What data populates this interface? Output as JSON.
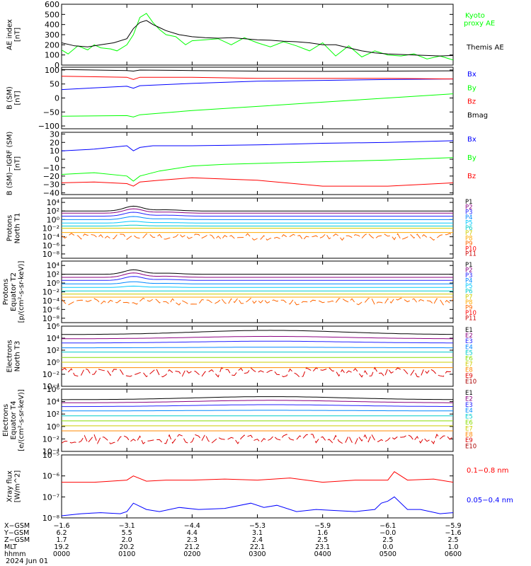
{
  "page": {
    "footer_date": "2024 Jun 01"
  },
  "colors": {
    "black": "#000000",
    "blue": "#0000ff",
    "green": "#00ff00",
    "red": "#ff0000"
  },
  "chart_data": [
    {
      "type": "line",
      "ylabel": [
        "AE index",
        "[nT]"
      ],
      "ylim": [
        0,
        600
      ],
      "yticks": [
        {
          "v": 0,
          "t": "0"
        },
        {
          "v": 100,
          "t": "100"
        },
        {
          "v": 200,
          "t": "200"
        },
        {
          "v": 300,
          "t": "300"
        },
        {
          "v": 400,
          "t": "400"
        },
        {
          "v": 500,
          "t": "500"
        },
        {
          "v": 600,
          "t": "600"
        }
      ],
      "legend": [
        {
          "text": "Kyoto",
          "color": "#00ff00"
        },
        {
          "text": "proxy AE",
          "color": "#00ff00"
        },
        {
          "text": "Themis AE",
          "color": "#000000"
        }
      ],
      "series": [
        {
          "name": "Kyoto proxy AE",
          "color": "#00ff00",
          "x": [
            0,
            0.1,
            0.25,
            0.4,
            0.5,
            0.6,
            0.75,
            0.85,
            1.0,
            1.1,
            1.2,
            1.3,
            1.4,
            1.5,
            1.6,
            1.75,
            1.9,
            2.0,
            2.2,
            2.4,
            2.6,
            2.8,
            3.0,
            3.2,
            3.4,
            3.6,
            3.8,
            4.0,
            4.2,
            4.4,
            4.6,
            4.8,
            5.0,
            5.2,
            5.4,
            5.6,
            5.8,
            6.0
          ],
          "y": [
            150,
            110,
            190,
            150,
            200,
            170,
            160,
            140,
            200,
            300,
            470,
            510,
            420,
            350,
            300,
            280,
            200,
            240,
            250,
            260,
            200,
            270,
            220,
            180,
            230,
            190,
            140,
            220,
            90,
            190,
            80,
            140,
            100,
            90,
            110,
            60,
            90,
            50
          ]
        },
        {
          "name": "Themis AE",
          "color": "#000000",
          "x": [
            0,
            0.2,
            0.4,
            0.6,
            0.8,
            1.0,
            1.1,
            1.2,
            1.3,
            1.4,
            1.5,
            1.6,
            1.8,
            2.0,
            2.2,
            2.4,
            2.6,
            2.8,
            3.0,
            3.2,
            3.4,
            3.6,
            3.8,
            4.0,
            4.2,
            4.4,
            4.6,
            4.8,
            5.0,
            5.2,
            5.4,
            5.6,
            5.8,
            6.0
          ],
          "y": [
            220,
            190,
            180,
            200,
            220,
            260,
            360,
            420,
            440,
            400,
            370,
            340,
            300,
            280,
            270,
            265,
            270,
            260,
            250,
            245,
            235,
            230,
            220,
            200,
            200,
            170,
            140,
            120,
            110,
            105,
            100,
            95,
            90,
            95
          ]
        }
      ]
    },
    {
      "type": "line",
      "ylabel": [
        "B (SM)",
        "[nT]"
      ],
      "ylim": [
        -110,
        110
      ],
      "yticks": [
        {
          "v": -100,
          "t": "−100"
        },
        {
          "v": -50,
          "t": "−50"
        },
        {
          "v": 0,
          "t": "0"
        },
        {
          "v": 50,
          "t": "50"
        },
        {
          "v": 100,
          "t": "100"
        }
      ],
      "legend": [
        {
          "text": "Bx",
          "color": "#0000ff"
        },
        {
          "text": "By",
          "color": "#00ff00"
        },
        {
          "text": "Bz",
          "color": "#ff0000"
        },
        {
          "text": "Bmag",
          "color": "#000000"
        }
      ],
      "series": [
        {
          "name": "Bx",
          "color": "#0000ff",
          "x": [
            0,
            1,
            1.1,
            1.2,
            2,
            3,
            4,
            5,
            6
          ],
          "y": [
            30,
            42,
            35,
            44,
            52,
            60,
            63,
            66,
            68
          ]
        },
        {
          "name": "By",
          "color": "#00ff00",
          "x": [
            0,
            1,
            1.1,
            1.2,
            2,
            3,
            4,
            5,
            6
          ],
          "y": [
            -65,
            -63,
            -68,
            -60,
            -45,
            -30,
            -15,
            0,
            15
          ]
        },
        {
          "name": "Bz",
          "color": "#ff0000",
          "x": [
            0,
            1,
            1.1,
            1.2,
            2,
            3,
            4,
            5,
            6
          ],
          "y": [
            78,
            74,
            66,
            74,
            74,
            70,
            70,
            70,
            68
          ]
        },
        {
          "name": "Bmag",
          "color": "#000000",
          "x": [
            0,
            1,
            1.1,
            1.2,
            2,
            3,
            4,
            5,
            6
          ],
          "y": [
            102,
            98,
            96,
            100,
            98,
            96,
            95,
            96,
            97
          ]
        }
      ]
    },
    {
      "type": "line",
      "ylabel": [
        "B (SM)−IGRF (SM)",
        "[nT]"
      ],
      "ylim": [
        -42,
        32
      ],
      "yticks": [
        {
          "v": -40,
          "t": "−40"
        },
        {
          "v": -30,
          "t": "−30"
        },
        {
          "v": -20,
          "t": "−20"
        },
        {
          "v": -10,
          "t": "−10"
        },
        {
          "v": 0,
          "t": "0"
        },
        {
          "v": 10,
          "t": "10"
        },
        {
          "v": 20,
          "t": "20"
        },
        {
          "v": 30,
          "t": "30"
        }
      ],
      "legend": [
        {
          "text": "Bx",
          "color": "#0000ff"
        },
        {
          "text": "By",
          "color": "#00ff00"
        },
        {
          "text": "Bz",
          "color": "#ff0000"
        }
      ],
      "series": [
        {
          "name": "Bx",
          "color": "#0000ff",
          "x": [
            0,
            0.5,
            1.0,
            1.1,
            1.2,
            1.4,
            2,
            3,
            4,
            5,
            6
          ],
          "y": [
            10,
            12,
            16,
            10,
            14,
            16,
            16,
            17,
            19,
            20,
            22
          ]
        },
        {
          "name": "By",
          "color": "#00ff00",
          "x": [
            0,
            0.5,
            1.0,
            1.1,
            1.2,
            1.5,
            2,
            2.5,
            3,
            4,
            5,
            6
          ],
          "y": [
            -18,
            -16,
            -20,
            -26,
            -20,
            -14,
            -8,
            -6,
            -5,
            -3,
            -1,
            2
          ]
        },
        {
          "name": "Bz",
          "color": "#ff0000",
          "x": [
            0,
            0.5,
            1.0,
            1.1,
            1.2,
            1.5,
            2,
            3,
            4,
            5,
            6
          ],
          "y": [
            -28,
            -27,
            -29,
            -32,
            -27,
            -25,
            -22,
            -25,
            -32,
            -32,
            -28
          ]
        }
      ]
    },
    {
      "type": "line",
      "log": true,
      "ylabel": [
        "Protons",
        "North T1"
      ],
      "ylim": [
        -9,
        5
      ],
      "yticks": [
        {
          "v": 4,
          "t": "10⁴"
        },
        {
          "v": 2,
          "t": "10²"
        },
        {
          "v": 0,
          "t": "10⁰"
        },
        {
          "v": -2,
          "t": "10⁻²"
        },
        {
          "v": -4,
          "t": "10⁻⁴"
        },
        {
          "v": -6,
          "t": "10⁻⁶"
        },
        {
          "v": -8,
          "t": "10⁻⁸"
        }
      ],
      "series": [
        {
          "name": "P1",
          "color": "#000000",
          "base": 2.0,
          "peak": 1.1
        },
        {
          "name": "P2",
          "color": "#8b0080",
          "base": 1.5,
          "peak": 1.0
        },
        {
          "name": "P3",
          "color": "#2222ff",
          "base": 0.8,
          "peak": 0.9
        },
        {
          "name": "P4",
          "color": "#0088ff",
          "base": 0.0,
          "peak": 0.7
        },
        {
          "name": "P5",
          "color": "#00c8ff",
          "base": -0.8,
          "peak": 0.4
        },
        {
          "name": "P6",
          "color": "#00cccc",
          "base": -1.5,
          "peak": 0.2
        },
        {
          "name": "P7",
          "color": "#cccc00",
          "base": -2.0,
          "peak": 0.0
        },
        {
          "name": "P8",
          "color": "#ffaa00",
          "base": -3.0,
          "peak": 0.0
        },
        {
          "name": "P9",
          "color": "#ff6600",
          "base": -4.0,
          "peak": 0.0,
          "noisy": true
        },
        {
          "name": "P10",
          "color": "#ff0000",
          "base": -99,
          "peak": 0
        },
        {
          "name": "P11",
          "color": "#cc0000",
          "base": -99,
          "peak": 0
        }
      ]
    },
    {
      "type": "line",
      "log": true,
      "ylabel": [
        "Protons",
        "Equator T2",
        "[p/(cm²-s-sr-keV)]"
      ],
      "ylim": [
        -9,
        5
      ],
      "yticks": [
        {
          "v": 4,
          "t": "10⁴"
        },
        {
          "v": 2,
          "t": "10²"
        },
        {
          "v": 0,
          "t": "10⁰"
        },
        {
          "v": -2,
          "t": "10⁻²"
        },
        {
          "v": -4,
          "t": "10⁻⁴"
        },
        {
          "v": -6,
          "t": "10⁻⁶"
        },
        {
          "v": -8,
          "t": "10⁻⁸"
        }
      ],
      "series": [
        {
          "name": "P1",
          "color": "#000000",
          "base": 2.0,
          "peak": 1.0
        },
        {
          "name": "P2",
          "color": "#8b0080",
          "base": 1.3,
          "peak": 1.0
        },
        {
          "name": "P3",
          "color": "#2222ff",
          "base": 0.6,
          "peak": 0.9
        },
        {
          "name": "P4",
          "color": "#0088ff",
          "base": -0.2,
          "peak": 0.5
        },
        {
          "name": "P5",
          "color": "#00c8ff",
          "base": -1.0,
          "peak": 0.3
        },
        {
          "name": "P6",
          "color": "#00cccc",
          "base": -1.8,
          "peak": 0.0
        },
        {
          "name": "P7",
          "color": "#cccc00",
          "base": -2.5,
          "peak": 0.0
        },
        {
          "name": "P8",
          "color": "#ffaa00",
          "base": -3.2,
          "peak": 0.0
        },
        {
          "name": "P9",
          "color": "#ff6600",
          "base": -4.2,
          "peak": 0.0,
          "noisy": true
        },
        {
          "name": "P10",
          "color": "#ff0000",
          "base": -99,
          "peak": 0
        },
        {
          "name": "P11",
          "color": "#cc0000",
          "base": -99,
          "peak": 0
        }
      ]
    },
    {
      "type": "line",
      "log": true,
      "ylabel": [
        "Electrons",
        "North T3"
      ],
      "ylim": [
        -4,
        6
      ],
      "yticks": [
        {
          "v": 6,
          "t": "10⁶"
        },
        {
          "v": 4,
          "t": "10⁴"
        },
        {
          "v": 2,
          "t": "10²"
        },
        {
          "v": 0,
          "t": "10⁰"
        },
        {
          "v": -2,
          "t": "10⁻²"
        },
        {
          "v": -4,
          "t": "10⁻⁴"
        }
      ],
      "series": [
        {
          "name": "E1",
          "color": "#000000",
          "base": 4.6,
          "hump": 0.7
        },
        {
          "name": "E2",
          "color": "#8b0080",
          "base": 3.9,
          "hump": 0.4
        },
        {
          "name": "E3",
          "color": "#2222ff",
          "base": 3.2,
          "hump": 0.3
        },
        {
          "name": "E4",
          "color": "#0088ff",
          "base": 2.4,
          "hump": 0.1
        },
        {
          "name": "E5",
          "color": "#00cccc",
          "base": 1.7,
          "hump": 0.0
        },
        {
          "name": "E6",
          "color": "#88dd00",
          "base": 0.8,
          "hump": 0.0
        },
        {
          "name": "E7",
          "color": "#cccc00",
          "base": 0.0,
          "hump": 0.0
        },
        {
          "name": "E8",
          "color": "#ff8800",
          "base": -0.9,
          "hump": 0.0
        },
        {
          "name": "E9",
          "color": "#dd0000",
          "base": -1.7,
          "hump": 0.0,
          "noisy": true
        },
        {
          "name": "E10",
          "color": "#aa0000",
          "base": -99,
          "hump": 0
        }
      ]
    },
    {
      "type": "line",
      "log": true,
      "ylabel": [
        "Electrons",
        "Equator T4",
        "[e/(cm²-s-sr-keV)]"
      ],
      "ylim": [
        -4,
        6
      ],
      "yticks": [
        {
          "v": 6,
          "t": "10⁶"
        },
        {
          "v": 4,
          "t": "10⁴"
        },
        {
          "v": 2,
          "t": "10²"
        },
        {
          "v": 0,
          "t": "10⁰"
        },
        {
          "v": -2,
          "t": "10⁻²"
        },
        {
          "v": -4,
          "t": "10⁻⁴"
        }
      ],
      "series": [
        {
          "name": "E1",
          "color": "#000000",
          "base": 4.3,
          "hump": 0.5
        },
        {
          "name": "E2",
          "color": "#8b0080",
          "base": 3.8,
          "hump": 0.4
        },
        {
          "name": "E3",
          "color": "#2222ff",
          "base": 3.2,
          "hump": 0.3
        },
        {
          "name": "E4",
          "color": "#0088ff",
          "base": 2.5,
          "hump": 0.1
        },
        {
          "name": "E5",
          "color": "#00cccc",
          "base": 1.7,
          "hump": 0.0
        },
        {
          "name": "E6",
          "color": "#88dd00",
          "base": 0.9,
          "hump": 0.0
        },
        {
          "name": "E7",
          "color": "#cccc00",
          "base": 0.1,
          "hump": 0.0
        },
        {
          "name": "E8",
          "color": "#ff8800",
          "base": -0.7,
          "hump": 0.0
        },
        {
          "name": "E9",
          "color": "#dd0000",
          "base": -2.0,
          "hump": 0.0,
          "noisy": true
        },
        {
          "name": "E10",
          "color": "#aa0000",
          "base": -99,
          "hump": 0
        }
      ]
    },
    {
      "type": "line",
      "log": true,
      "ylabel": [
        "Xray flux",
        "[W/m^2]"
      ],
      "ylim": [
        -8,
        -5
      ],
      "yticks": [
        {
          "v": -5,
          "t": "10⁻⁵"
        },
        {
          "v": -6,
          "t": "10⁻⁶"
        },
        {
          "v": -7,
          "t": "10⁻⁷"
        },
        {
          "v": -8,
          "t": "10⁻⁸"
        }
      ],
      "legend": [
        {
          "text": "0.1−0.8 nm",
          "color": "#ff0000"
        },
        {
          "text": "0.05−0.4 nm",
          "color": "#0000ff"
        }
      ],
      "series": [
        {
          "name": "0.1−0.8 nm",
          "color": "#ff0000",
          "x": [
            0,
            0.5,
            1.0,
            1.1,
            1.3,
            1.6,
            2,
            2.5,
            3,
            3.5,
            4,
            4.5,
            5.0,
            5.1,
            5.3,
            5.7,
            6
          ],
          "y": [
            -6.3,
            -6.3,
            -6.2,
            -6.0,
            -6.25,
            -6.2,
            -6.2,
            -6.15,
            -6.2,
            -6.1,
            -6.3,
            -6.2,
            -6.2,
            -5.8,
            -6.2,
            -6.15,
            -6.3
          ]
        },
        {
          "name": "0.05−0.4 nm",
          "color": "#0000ff",
          "x": [
            0,
            0.3,
            0.6,
            0.9,
            1.0,
            1.1,
            1.3,
            1.5,
            1.8,
            2.1,
            2.5,
            2.9,
            3.1,
            3.3,
            3.6,
            3.9,
            4.2,
            4.5,
            4.8,
            4.9,
            5.0,
            5.1,
            5.3,
            5.5,
            5.8,
            6
          ],
          "y": [
            -7.9,
            -7.8,
            -7.75,
            -7.8,
            -7.7,
            -7.3,
            -7.6,
            -7.7,
            -7.5,
            -7.6,
            -7.55,
            -7.3,
            -7.5,
            -7.4,
            -7.7,
            -7.6,
            -7.65,
            -7.7,
            -7.6,
            -7.3,
            -7.2,
            -7.0,
            -7.6,
            -7.6,
            -7.8,
            -7.75
          ]
        }
      ]
    }
  ],
  "xaxis": {
    "positions": [
      0,
      1,
      2,
      3,
      4,
      5,
      6
    ],
    "rows": [
      {
        "label": "X−GSM",
        "values": [
          "−1.6",
          "−3.1",
          "−4.4",
          "−5.3",
          "−5.9",
          "−6.1",
          "−5.9"
        ]
      },
      {
        "label": "Y−GSM",
        "values": [
          "6.2",
          "5.5",
          "4.4",
          "3.1",
          "1.6",
          "−0.0",
          "−1.6"
        ]
      },
      {
        "label": "Z−GSM",
        "values": [
          "1.7",
          "2.0",
          "2.3",
          "2.4",
          "2.5",
          "2.5",
          "2.5"
        ]
      },
      {
        "label": "MLT",
        "values": [
          "19.2",
          "20.2",
          "21.2",
          "22.1",
          "23.1",
          "0.0",
          "1.0"
        ]
      },
      {
        "label": "hhmm",
        "values": [
          "0000",
          "0100",
          "0200",
          "0300",
          "0400",
          "0500",
          "0600"
        ]
      }
    ]
  }
}
